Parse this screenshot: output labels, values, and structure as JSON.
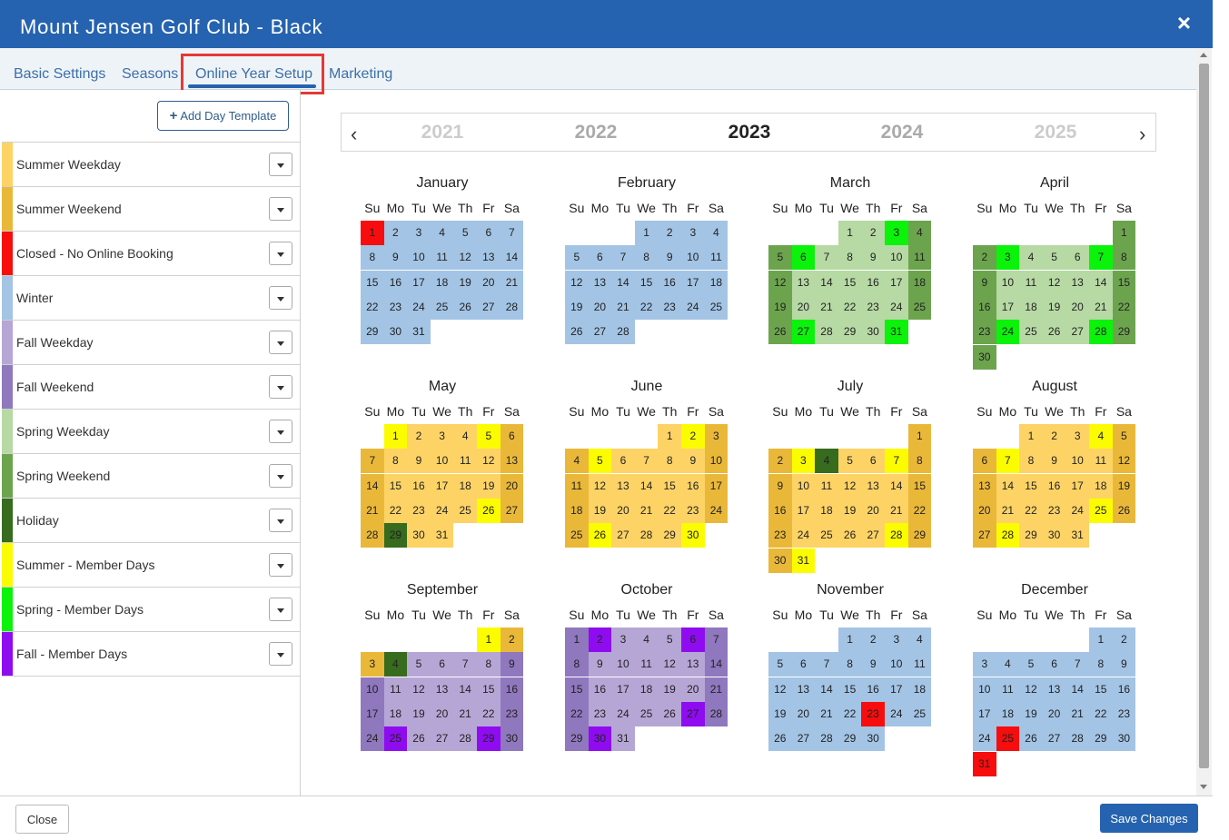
{
  "window": {
    "title": "Mount Jensen Golf Club - Black",
    "close_glyph": "×"
  },
  "tabs": [
    {
      "label": "Basic Settings"
    },
    {
      "label": "Seasons"
    },
    {
      "label": "Online Year Setup",
      "active": true
    },
    {
      "label": "Marketing"
    }
  ],
  "sidebar": {
    "add_button_label": "Add Day Template",
    "add_icon": "plus-icon",
    "templates": [
      {
        "label": "Summer Weekday",
        "color": "#fdd365"
      },
      {
        "label": "Summer Weekend",
        "color": "#eab839"
      },
      {
        "label": "Closed - No Online Booking",
        "color": "#f70d0d"
      },
      {
        "label": "Winter",
        "color": "#a3c4e5"
      },
      {
        "label": "Fall Weekday",
        "color": "#b6a6d6"
      },
      {
        "label": "Fall Weekend",
        "color": "#8f78bd"
      },
      {
        "label": "Spring Weekday",
        "color": "#b7d9a4"
      },
      {
        "label": "Spring Weekend",
        "color": "#6ca44e"
      },
      {
        "label": "Holiday",
        "color": "#376b1e"
      },
      {
        "label": "Summer - Member Days",
        "color": "#fcfc00"
      },
      {
        "label": "Spring - Member Days",
        "color": "#0bf20b"
      },
      {
        "label": "Fall - Member Days",
        "color": "#8f0cf0"
      }
    ]
  },
  "year_nav": {
    "prev_glyph": "‹",
    "next_glyph": "›",
    "years": [
      "2021",
      "2022",
      "2023",
      "2024",
      "2025"
    ],
    "selected": "2023"
  },
  "calendar": {
    "weekdays": [
      "Su",
      "Mo",
      "Tu",
      "We",
      "Th",
      "Fr",
      "Sa"
    ],
    "colors": {
      "W": "#a3c4e5",
      "C": "#f70d0d",
      "SD": "#b7d9a4",
      "SE": "#6ca44e",
      "SM": "#0bf20b",
      "UD": "#fdd365",
      "UE": "#eab839",
      "UM": "#fcfc00",
      "H": "#376b1e",
      "FD": "#b6a6d6",
      "FE": "#8f78bd",
      "FM": "#8f0cf0"
    },
    "months": [
      {
        "name": "January",
        "start": 0,
        "days": 31,
        "base": "W",
        "overrides": {
          "1": "C"
        }
      },
      {
        "name": "February",
        "start": 3,
        "days": 28,
        "base": "W",
        "overrides": {}
      },
      {
        "name": "March",
        "start": 3,
        "days": 31,
        "base": "SD",
        "weekend": "SE",
        "overrides": {
          "3": "SM",
          "6": "SM",
          "27": "SM",
          "31": "SM"
        }
      },
      {
        "name": "April",
        "start": 6,
        "days": 30,
        "base": "SD",
        "weekend": "SE",
        "overrides": {
          "3": "SM",
          "7": "SM",
          "24": "SM",
          "28": "SM"
        }
      },
      {
        "name": "May",
        "start": 1,
        "days": 31,
        "base": "UD",
        "weekend": "UE",
        "overrides": {
          "1": "UM",
          "5": "UM",
          "26": "UM",
          "29": "H"
        }
      },
      {
        "name": "June",
        "start": 4,
        "days": 30,
        "base": "UD",
        "weekend": "UE",
        "overrides": {
          "2": "UM",
          "5": "UM",
          "26": "UM",
          "30": "UM"
        }
      },
      {
        "name": "July",
        "start": 6,
        "days": 31,
        "base": "UD",
        "weekend": "UE",
        "overrides": {
          "3": "UM",
          "4": "H",
          "7": "UM",
          "28": "UM",
          "31": "UM"
        }
      },
      {
        "name": "August",
        "start": 2,
        "days": 31,
        "base": "UD",
        "weekend": "UE",
        "overrides": {
          "4": "UM",
          "7": "UM",
          "25": "UM",
          "28": "UM"
        }
      },
      {
        "name": "September",
        "start": 5,
        "days": 30,
        "base": "FD",
        "weekend": "FE",
        "overrides": {
          "1": "UM",
          "2": "UE",
          "3": "UE",
          "4": "H",
          "25": "FM",
          "29": "FM"
        }
      },
      {
        "name": "October",
        "start": 0,
        "days": 31,
        "base": "FD",
        "weekend": "FE",
        "overrides": {
          "2": "FM",
          "6": "FM",
          "27": "FM",
          "30": "FM"
        }
      },
      {
        "name": "November",
        "start": 3,
        "days": 30,
        "base": "W",
        "overrides": {
          "23": "C"
        }
      },
      {
        "name": "December",
        "start": 5,
        "days": 31,
        "base": "W",
        "overrides": {
          "25": "C",
          "31": "C"
        }
      }
    ]
  },
  "footer": {
    "close_label": "Close",
    "save_label": "Save Changes"
  }
}
